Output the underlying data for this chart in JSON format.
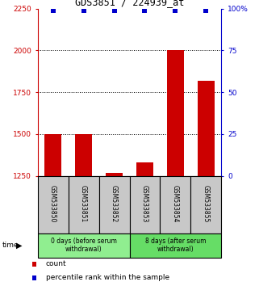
{
  "title": "GDS3851 / 224939_at",
  "samples": [
    "GSM533850",
    "GSM533851",
    "GSM533852",
    "GSM533853",
    "GSM533854",
    "GSM533855"
  ],
  "counts": [
    1500,
    1500,
    1270,
    1330,
    2000,
    1820
  ],
  "percentile_ranks": [
    99,
    99,
    99,
    99,
    99,
    99
  ],
  "ylim_left": [
    1250,
    2250
  ],
  "ylim_right": [
    0,
    100
  ],
  "yticks_left": [
    1250,
    1500,
    1750,
    2000,
    2250
  ],
  "yticks_right": [
    0,
    25,
    50,
    75,
    100
  ],
  "groups": [
    {
      "label": "0 days (before serum\nwithdrawal)",
      "samples": [
        0,
        1,
        2
      ],
      "color": "#90EE90"
    },
    {
      "label": "8 days (after serum\nwithdrawal)",
      "samples": [
        3,
        4,
        5
      ],
      "color": "#66DD66"
    }
  ],
  "bar_color": "#CC0000",
  "percentile_color": "#0000CC",
  "bar_width": 0.55,
  "grid_color": "#000000",
  "sample_box_color": "#C8C8C8",
  "background_color": "#FFFFFF",
  "left_axis_color": "#CC0000",
  "right_axis_color": "#0000CC",
  "time_label": "time",
  "legend_count_label": "count",
  "legend_percentile_label": "percentile rank within the sample"
}
